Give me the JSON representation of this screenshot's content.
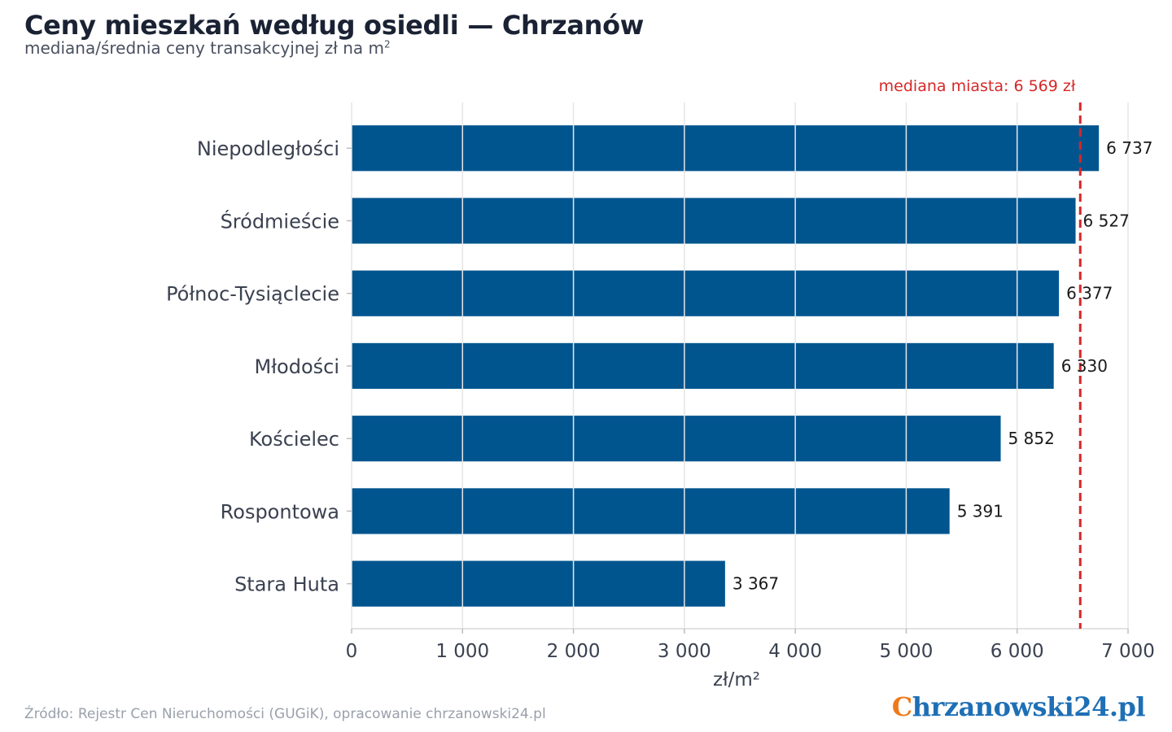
{
  "header": {
    "title": "Ceny mieszkań według osiedli — Chrzanów",
    "subtitle": "mediana/średnia ceny transakcyjnej zł na m",
    "subtitle_sup": "2"
  },
  "footer": {
    "source": "Źródło: Rejestr Cen Nieruchomości (GUGiK), opracowanie chrzanowski24.pl",
    "logo_first": "C",
    "logo_rest": "hrzanowski24.pl"
  },
  "colors": {
    "bar": "#00558f",
    "reference_line": "#d62728",
    "grid": "#e6e6e6"
  },
  "chart_data": {
    "type": "bar",
    "orientation": "horizontal",
    "categories": [
      "Niepodległości",
      "Śródmieście",
      "Północ-Tysiąclecie",
      "Młodości",
      "Kościelec",
      "Rospontowa",
      "Stara Huta"
    ],
    "values": [
      6737,
      6527,
      6377,
      6330,
      5852,
      5391,
      3367
    ],
    "value_labels": [
      "6 737",
      "6 527",
      "6 377",
      "6 330",
      "5 852",
      "5 391",
      "3 367"
    ],
    "xlabel": "zł/m²",
    "ylabel": "",
    "xlim": [
      0,
      7000
    ],
    "xticks": [
      0,
      1000,
      2000,
      3000,
      4000,
      5000,
      6000,
      7000
    ],
    "xtick_labels": [
      "0",
      "1 000",
      "2 000",
      "3 000",
      "4 000",
      "5 000",
      "6 000",
      "7 000"
    ],
    "grid": true,
    "reference_line": {
      "value": 6569,
      "label": "mediana miasta: 6 569 zł",
      "style": "dashed"
    }
  }
}
